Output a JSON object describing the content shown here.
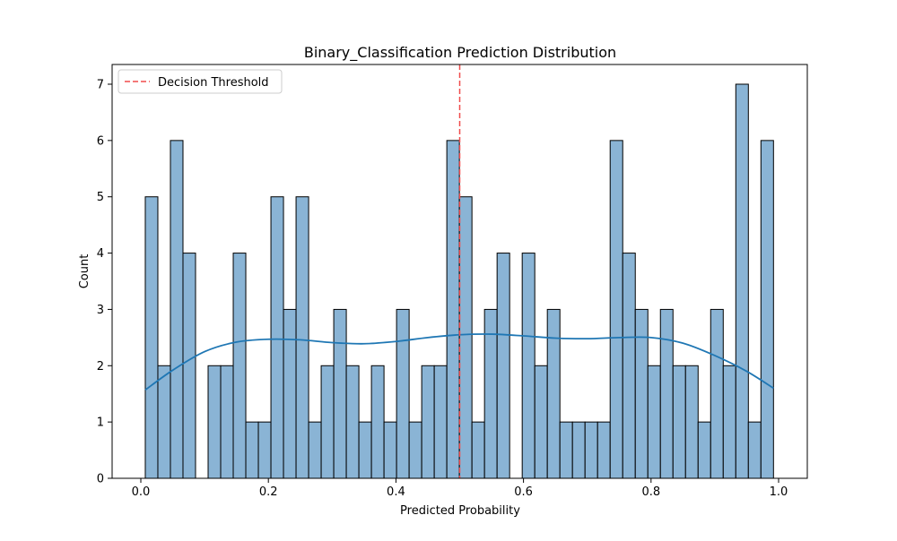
{
  "chart_data": {
    "type": "bar",
    "title": "Binary_Classification Prediction Distribution",
    "xlabel": "Predicted Probability",
    "ylabel": "Count",
    "xlim": [
      -0.045,
      1.045
    ],
    "ylim": [
      0,
      7.35
    ],
    "xticks": [
      "0.0",
      "0.2",
      "0.4",
      "0.6",
      "0.8",
      "1.0"
    ],
    "yticks": [
      "0",
      "1",
      "2",
      "3",
      "4",
      "5",
      "6",
      "7"
    ],
    "bins": {
      "start": 0.007,
      "width": 0.0197,
      "counts": [
        5,
        2,
        6,
        4,
        0,
        2,
        2,
        4,
        1,
        1,
        5,
        3,
        5,
        1,
        2,
        3,
        2,
        1,
        2,
        1,
        3,
        1,
        2,
        2,
        6,
        5,
        1,
        3,
        4,
        0,
        4,
        2,
        3,
        1,
        1,
        1,
        1,
        6,
        4,
        3,
        2,
        3,
        2,
        2,
        1,
        3,
        2,
        7,
        1,
        6
      ]
    },
    "kde": {
      "name": "kde",
      "x": [
        0.007,
        0.05,
        0.1,
        0.15,
        0.2,
        0.25,
        0.3,
        0.35,
        0.4,
        0.45,
        0.5,
        0.55,
        0.6,
        0.65,
        0.7,
        0.75,
        0.8,
        0.85,
        0.9,
        0.95,
        0.992
      ],
      "y": [
        1.57,
        1.92,
        2.25,
        2.42,
        2.47,
        2.46,
        2.41,
        2.39,
        2.43,
        2.5,
        2.55,
        2.56,
        2.53,
        2.49,
        2.48,
        2.5,
        2.5,
        2.4,
        2.18,
        1.9,
        1.6
      ]
    },
    "threshold": {
      "x": 0.5,
      "label": "Decision Threshold"
    },
    "grid": false,
    "legend_position": "top-left",
    "colors": {
      "bar_fill": "#8ab4d5",
      "bar_edge": "#000000",
      "kde_line": "#1f77b4",
      "threshold_line": "#f04b4b"
    }
  }
}
